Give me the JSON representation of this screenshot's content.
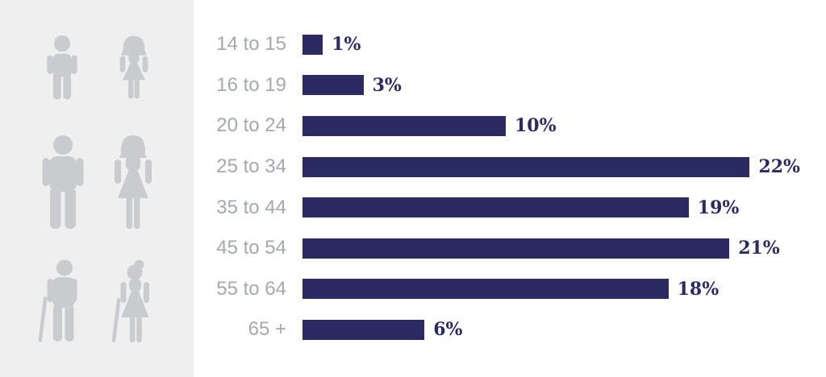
{
  "chart_data": {
    "type": "bar",
    "orientation": "horizontal",
    "title": "",
    "xlabel": "",
    "ylabel": "",
    "categories": [
      "14 to 15",
      "16 to 19",
      "20 to 24",
      "25 to 34",
      "35 to 44",
      "45 to 54",
      "55 to 64",
      "65 +"
    ],
    "values": [
      1,
      3,
      10,
      22,
      19,
      21,
      18,
      6
    ],
    "value_labels": [
      "1%",
      "3%",
      "10%",
      "22%",
      "19%",
      "21%",
      "18%",
      "6%"
    ],
    "xlim": [
      0,
      22
    ],
    "grid": false,
    "legend": false,
    "bar_color": "#2b2a63",
    "value_label_color": "#2b2a63",
    "category_label_color": "#a5a8ac"
  },
  "panel": {
    "background": "#efeff0",
    "figure_color": "#c9cbce",
    "figures": [
      {
        "icon": "child-male-icon"
      },
      {
        "icon": "child-female-icon"
      },
      {
        "icon": "adult-male-icon"
      },
      {
        "icon": "adult-female-icon"
      },
      {
        "icon": "senior-male-icon"
      },
      {
        "icon": "senior-female-icon"
      }
    ]
  }
}
